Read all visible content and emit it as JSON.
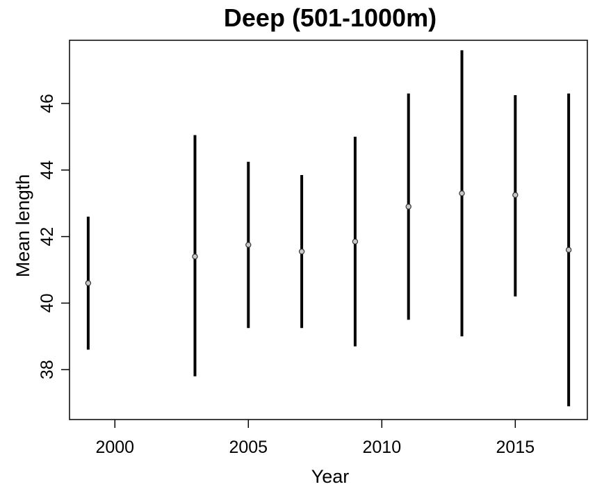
{
  "chart_data": {
    "type": "scatter",
    "title": "Deep (501-1000m)",
    "xlabel": "Year",
    "ylabel": "Mean length",
    "xlim": [
      1998.3,
      2017.7
    ],
    "ylim": [
      36.5,
      47.9
    ],
    "xticks": [
      2000,
      2005,
      2010,
      2015
    ],
    "yticks": [
      38,
      40,
      42,
      44,
      46
    ],
    "grid": false,
    "legend": "none",
    "colors": {
      "bar": "#000000",
      "point_fill": "#c8c8c8",
      "point_stroke": "#333333"
    },
    "series": [
      {
        "points": [
          {
            "x": 1999,
            "y": 40.6,
            "lower": 38.6,
            "upper": 42.6
          },
          {
            "x": 2003,
            "y": 41.4,
            "lower": 37.8,
            "upper": 45.05
          },
          {
            "x": 2005,
            "y": 41.75,
            "lower": 39.25,
            "upper": 44.25
          },
          {
            "x": 2007,
            "y": 41.55,
            "lower": 39.25,
            "upper": 43.85
          },
          {
            "x": 2009,
            "y": 41.85,
            "lower": 38.7,
            "upper": 45.0
          },
          {
            "x": 2011,
            "y": 42.9,
            "lower": 39.5,
            "upper": 46.3
          },
          {
            "x": 2013,
            "y": 43.3,
            "lower": 39.0,
            "upper": 47.6
          },
          {
            "x": 2015,
            "y": 43.25,
            "lower": 40.2,
            "upper": 46.25
          },
          {
            "x": 2017,
            "y": 41.6,
            "lower": 36.9,
            "upper": 46.3
          }
        ]
      }
    ]
  }
}
